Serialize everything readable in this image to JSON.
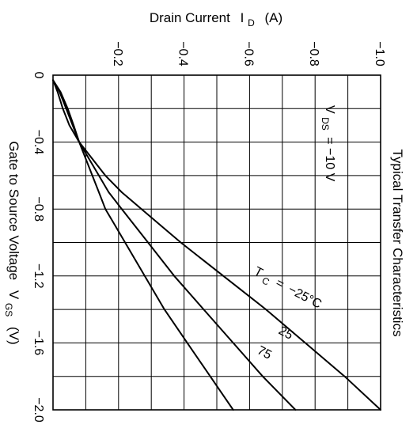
{
  "chart_data": {
    "type": "line",
    "title": "Typical Transfer Characteristics",
    "xlabel": {
      "text": "Gate to Source Voltage",
      "symbol": "V",
      "subscript": "GS",
      "unit": "(V)"
    },
    "ylabel": {
      "text": "Drain Current",
      "symbol": "I",
      "subscript": "D",
      "unit": "(A)"
    },
    "xlim": [
      0,
      -2.0
    ],
    "ylim": [
      0,
      -1.0
    ],
    "x_tick_labels": [
      "0",
      "−0.4",
      "−0.8",
      "−1.2",
      "−1.6",
      "−2.0"
    ],
    "y_tick_labels": [
      "−0.2",
      "−0.4",
      "−0.6",
      "−0.8",
      "−1.0"
    ],
    "grid": true,
    "orientation": "rotated 90 degrees clockwise",
    "condition": {
      "symbol": "V",
      "subscript": "DS",
      "value": "= −10 V"
    },
    "curve_label_prefix": {
      "symbol": "T",
      "subscript": "C",
      "eq": "="
    },
    "series": [
      {
        "name": "−25°C",
        "x": [
          -0.03,
          -0.1,
          -0.2,
          -0.3,
          -0.4,
          -0.5,
          -0.6,
          -0.7,
          -0.8,
          -0.9,
          -1.0,
          -1.2,
          -1.4,
          -1.6,
          -1.8,
          -2.0
        ],
        "y": [
          0,
          -0.014,
          -0.03,
          -0.05,
          -0.08,
          -0.12,
          -0.16,
          -0.21,
          -0.27,
          -0.33,
          -0.39,
          -0.52,
          -0.65,
          -0.77,
          -0.89,
          -1.0
        ]
      },
      {
        "name": "25",
        "x": [
          -0.03,
          -0.1,
          -0.2,
          -0.3,
          -0.4,
          -0.5,
          -0.6,
          -0.7,
          -0.8,
          -0.9,
          -1.0,
          -1.2,
          -1.4,
          -1.6,
          -1.8,
          -2.0
        ],
        "y": [
          0,
          -0.02,
          -0.04,
          -0.06,
          -0.08,
          -0.11,
          -0.14,
          -0.17,
          -0.21,
          -0.25,
          -0.29,
          -0.37,
          -0.46,
          -0.55,
          -0.64,
          -0.74
        ]
      },
      {
        "name": "75",
        "x": [
          -0.03,
          -0.1,
          -0.2,
          -0.3,
          -0.4,
          -0.5,
          -0.6,
          -0.7,
          -0.8,
          -0.9,
          -1.0,
          -1.2,
          -1.4,
          -1.6,
          -1.8,
          -2.0
        ],
        "y": [
          0,
          -0.023,
          -0.045,
          -0.063,
          -0.08,
          -0.1,
          -0.12,
          -0.14,
          -0.16,
          -0.19,
          -0.22,
          -0.28,
          -0.34,
          -0.41,
          -0.48,
          -0.55
        ]
      }
    ]
  }
}
